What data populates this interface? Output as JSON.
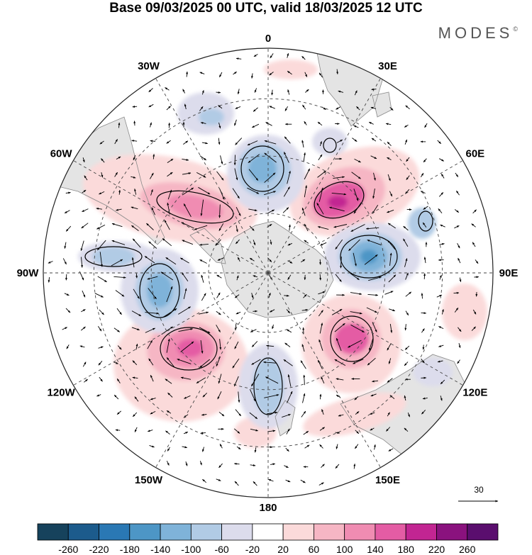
{
  "title": "Base 09/03/2025 00 UTC, valid 18/03/2025 12 UTC",
  "brand": {
    "name": "MODES",
    "mark": "©"
  },
  "map": {
    "projection": "south-polar-stereographic",
    "longitude_labels": [
      {
        "label": "0",
        "deg": 0
      },
      {
        "label": "30E",
        "deg": 30
      },
      {
        "label": "60E",
        "deg": 60
      },
      {
        "label": "90E",
        "deg": 90
      },
      {
        "label": "120E",
        "deg": 120
      },
      {
        "label": "150E",
        "deg": 150
      },
      {
        "label": "180",
        "deg": 180
      },
      {
        "label": "150W",
        "deg": 210
      },
      {
        "label": "120W",
        "deg": 240
      },
      {
        "label": "90W",
        "deg": 270
      },
      {
        "label": "60W",
        "deg": 300
      },
      {
        "label": "30W",
        "deg": 330
      }
    ],
    "colors": {
      "land": "#e4e4e4",
      "coast": "#8a8a8a",
      "grid": "#444444",
      "rim": "#222222"
    },
    "anomalies": [
      {
        "name": "high-south-atlantic",
        "sign": "pos",
        "level": 3
      },
      {
        "name": "low-south-atlantic-east",
        "sign": "neg",
        "level": 3
      },
      {
        "name": "high-indian-west",
        "sign": "pos",
        "level": 5
      },
      {
        "name": "low-indian-central",
        "sign": "neg",
        "level": 4
      },
      {
        "name": "high-south-of-australia",
        "sign": "pos",
        "level": 4
      },
      {
        "name": "low-ross-sea",
        "sign": "neg",
        "level": 3
      },
      {
        "name": "high-south-pacific",
        "sign": "pos",
        "level": 5
      },
      {
        "name": "low-amundsen-sea",
        "sign": "neg",
        "level": 3
      },
      {
        "name": "low-bellingshausen",
        "sign": "neg",
        "level": 2
      },
      {
        "name": "low-weddell",
        "sign": "neg",
        "level": 1
      },
      {
        "name": "high-tasman",
        "sign": "pos",
        "level": 1
      },
      {
        "name": "high-east-pacific",
        "sign": "pos",
        "level": 1
      }
    ]
  },
  "vector_scale": {
    "label": "30"
  },
  "colorbar": {
    "colors": [
      "#16425c",
      "#1c5b8c",
      "#2a78b4",
      "#4d96c6",
      "#7fb3d9",
      "#b1cbe5",
      "#dcdcec",
      "#ffffff",
      "#fbdada",
      "#f6b6c4",
      "#f08cb2",
      "#e45ca4",
      "#c22592",
      "#8a127e",
      "#5a0e6e"
    ],
    "tick_labels": [
      "-260",
      "-220",
      "-180",
      "-140",
      "-100",
      "-60",
      "-20",
      "20",
      "60",
      "100",
      "140",
      "180",
      "220",
      "260"
    ]
  }
}
